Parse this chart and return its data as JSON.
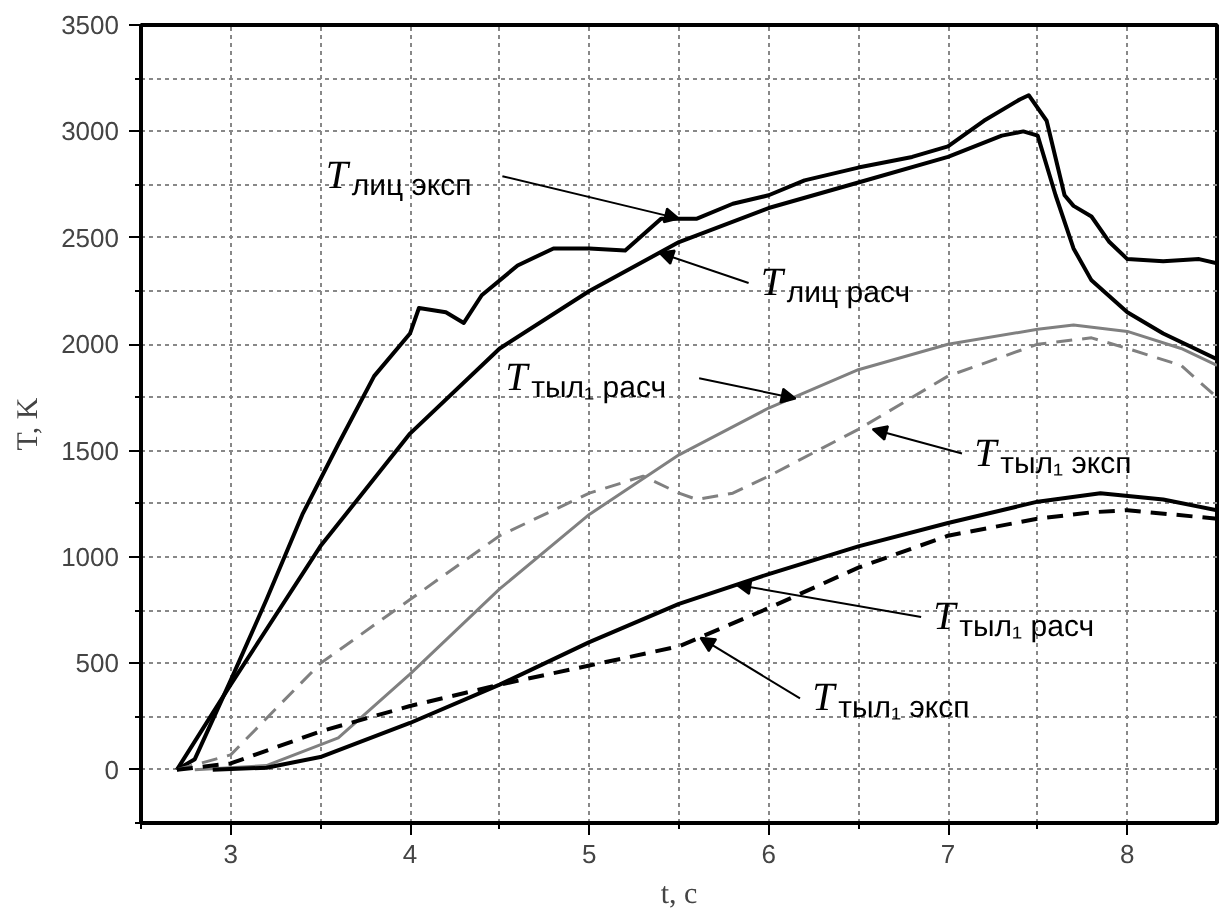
{
  "chart_data": {
    "type": "line",
    "xlabel": "t, с",
    "ylabel": "T, K",
    "xlim": [
      2.5,
      8.5
    ],
    "ylim": [
      -250,
      3500
    ],
    "xticks": [
      {
        "value": 2.5,
        "label": null
      },
      3,
      {
        "value": 3.5,
        "label": null
      },
      4,
      {
        "value": 4.5,
        "label": null
      },
      5,
      {
        "value": 5.5,
        "label": null
      },
      6,
      {
        "value": 6.5,
        "label": null
      },
      7,
      {
        "value": 7.5,
        "label": null
      },
      8
    ],
    "yticks": [
      {
        "value": -250,
        "label": null
      },
      0,
      {
        "value": 250,
        "label": null
      },
      500,
      {
        "value": 750,
        "label": null
      },
      1000,
      {
        "value": 1250,
        "label": null
      },
      1500,
      {
        "value": 1750,
        "label": null
      },
      2000,
      {
        "value": 2250,
        "label": null
      },
      2500,
      {
        "value": 2750,
        "label": null
      },
      3000,
      {
        "value": 3250,
        "label": null
      },
      3500
    ],
    "grid": true,
    "series": [
      {
        "color": "#000000",
        "line_style": "solid",
        "x": [
          2.7,
          2.8,
          3.0,
          3.2,
          3.4,
          3.6,
          3.8,
          4.0,
          4.05,
          4.2,
          4.3,
          4.4,
          4.6,
          4.8,
          5.0,
          5.2,
          5.4,
          5.6,
          5.8,
          6.0,
          6.2,
          6.5,
          6.8,
          7.0,
          7.2,
          7.4,
          7.45,
          7.55,
          7.65,
          7.7,
          7.8,
          7.9,
          8.0,
          8.2,
          8.4,
          8.5
        ],
        "values": [
          0,
          50,
          420,
          800,
          1200,
          1530,
          1850,
          2050,
          2170,
          2150,
          2100,
          2230,
          2370,
          2450,
          2450,
          2440,
          2590,
          2590,
          2660,
          2700,
          2770,
          2830,
          2880,
          2930,
          3050,
          3150,
          3170,
          3050,
          2700,
          2650,
          2600,
          2480,
          2400,
          2390,
          2400,
          2380
        ]
      },
      {
        "color": "#000000",
        "line_style": "solid",
        "x": [
          2.7,
          3.0,
          3.5,
          4.0,
          4.5,
          5.0,
          5.5,
          6.0,
          6.5,
          7.0,
          7.3,
          7.42,
          7.5,
          7.6,
          7.7,
          7.8,
          8.0,
          8.2,
          8.5
        ],
        "values": [
          0,
          400,
          1050,
          1580,
          1980,
          2250,
          2480,
          2640,
          2760,
          2880,
          2980,
          3000,
          2980,
          2700,
          2450,
          2300,
          2150,
          2050,
          1930
        ]
      },
      {
        "color": "#808080",
        "line_style": "solid",
        "x": [
          2.8,
          3.2,
          3.6,
          4.0,
          4.5,
          5.0,
          5.5,
          6.0,
          6.5,
          7.0,
          7.5,
          7.7,
          8.0,
          8.3,
          8.5
        ],
        "values": [
          0,
          20,
          150,
          450,
          850,
          1200,
          1480,
          1700,
          1880,
          2000,
          2070,
          2090,
          2060,
          1980,
          1900
        ]
      },
      {
        "color": "#808080",
        "line_style": "dashed",
        "x": [
          2.7,
          3.0,
          3.5,
          4.0,
          4.5,
          5.0,
          5.3,
          5.5,
          5.6,
          5.8,
          6.0,
          6.5,
          7.0,
          7.5,
          7.8,
          8.0,
          8.3,
          8.5
        ],
        "values": [
          0,
          70,
          500,
          800,
          1100,
          1300,
          1380,
          1300,
          1270,
          1300,
          1380,
          1600,
          1850,
          2000,
          2030,
          1980,
          1900,
          1750
        ]
      },
      {
        "color": "#000000",
        "line_style": "solid",
        "x": [
          2.9,
          3.2,
          3.5,
          4.0,
          4.5,
          5.0,
          5.5,
          6.0,
          6.5,
          7.0,
          7.5,
          7.85,
          8.2,
          8.5
        ],
        "values": [
          0,
          10,
          60,
          220,
          400,
          600,
          780,
          920,
          1050,
          1160,
          1260,
          1300,
          1270,
          1220
        ]
      },
      {
        "color": "#000000",
        "line_style": "dashed",
        "x": [
          2.7,
          3.0,
          3.5,
          4.0,
          4.5,
          5.0,
          5.5,
          6.0,
          6.5,
          7.0,
          7.5,
          7.8,
          8.0,
          8.5
        ],
        "values": [
          0,
          30,
          180,
          300,
          400,
          490,
          580,
          760,
          950,
          1100,
          1180,
          1210,
          1220,
          1180
        ]
      }
    ],
    "annotations": [
      {
        "text": "T$_{лиц эксп}$",
        "x": 5.5,
        "y": 2590
      },
      {
        "text": "T$_{лиц расч}$",
        "x": 5.39,
        "y": 2430
      },
      {
        "text": "T$_{тыл₁ расч}$",
        "x": 6.15,
        "y": 1745
      },
      {
        "text": "T$_{тыл₁ эксп}$",
        "x": 6.58,
        "y": 1600
      },
      {
        "text": "T$_{тыл₁ расч}$",
        "x": 5.82,
        "y": 870
      },
      {
        "text": "T$_{тыл₁ эксп}$",
        "x": 5.62,
        "y": 620
      }
    ]
  }
}
